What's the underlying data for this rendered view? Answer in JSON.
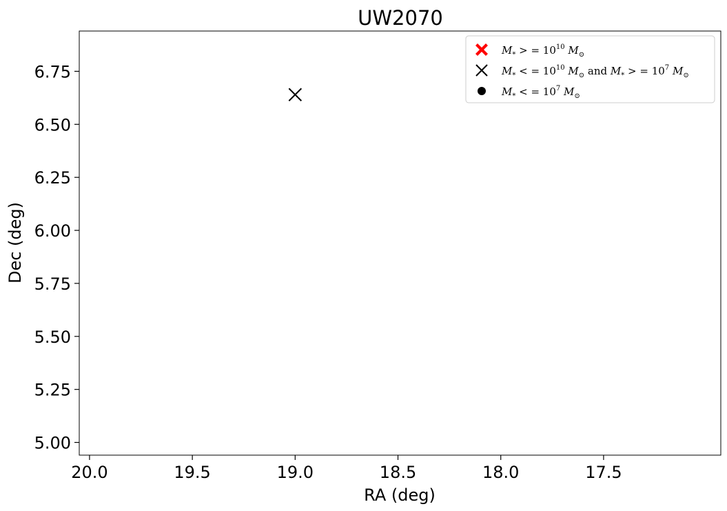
{
  "chart_data": {
    "type": "scatter",
    "title": "UW2070",
    "xlabel": "RA (deg)",
    "ylabel": "Dec (deg)",
    "xlim": [
      20.05,
      16.93
    ],
    "ylim": [
      4.94,
      6.94
    ],
    "x_inverted": true,
    "grid": false,
    "legend_position": "top-right",
    "xticks": [
      20.0,
      19.5,
      19.0,
      18.5,
      18.0,
      17.5
    ],
    "xtick_labels": [
      "20.0",
      "19.5",
      "19.0",
      "18.5",
      "18.0",
      "17.5"
    ],
    "yticks": [
      5.0,
      5.25,
      5.5,
      5.75,
      6.0,
      6.25,
      6.5,
      6.75
    ],
    "ytick_labels": [
      "5.00",
      "5.25",
      "5.50",
      "5.75",
      "6.00",
      "6.25",
      "6.50",
      "6.75"
    ],
    "series": [
      {
        "name": "M* >= 10^10 Msun",
        "marker": "filled-x",
        "color": "#ff0000",
        "points": []
      },
      {
        "name": "M* <= 10^10 Msun and M* >= 10^7 Msun",
        "marker": "x",
        "color": "#000000",
        "points": [
          {
            "x": 19.0,
            "y": 6.64
          }
        ]
      },
      {
        "name": "M* <= 10^7 Msun",
        "marker": "circle",
        "color": "#000000",
        "points": []
      }
    ]
  }
}
